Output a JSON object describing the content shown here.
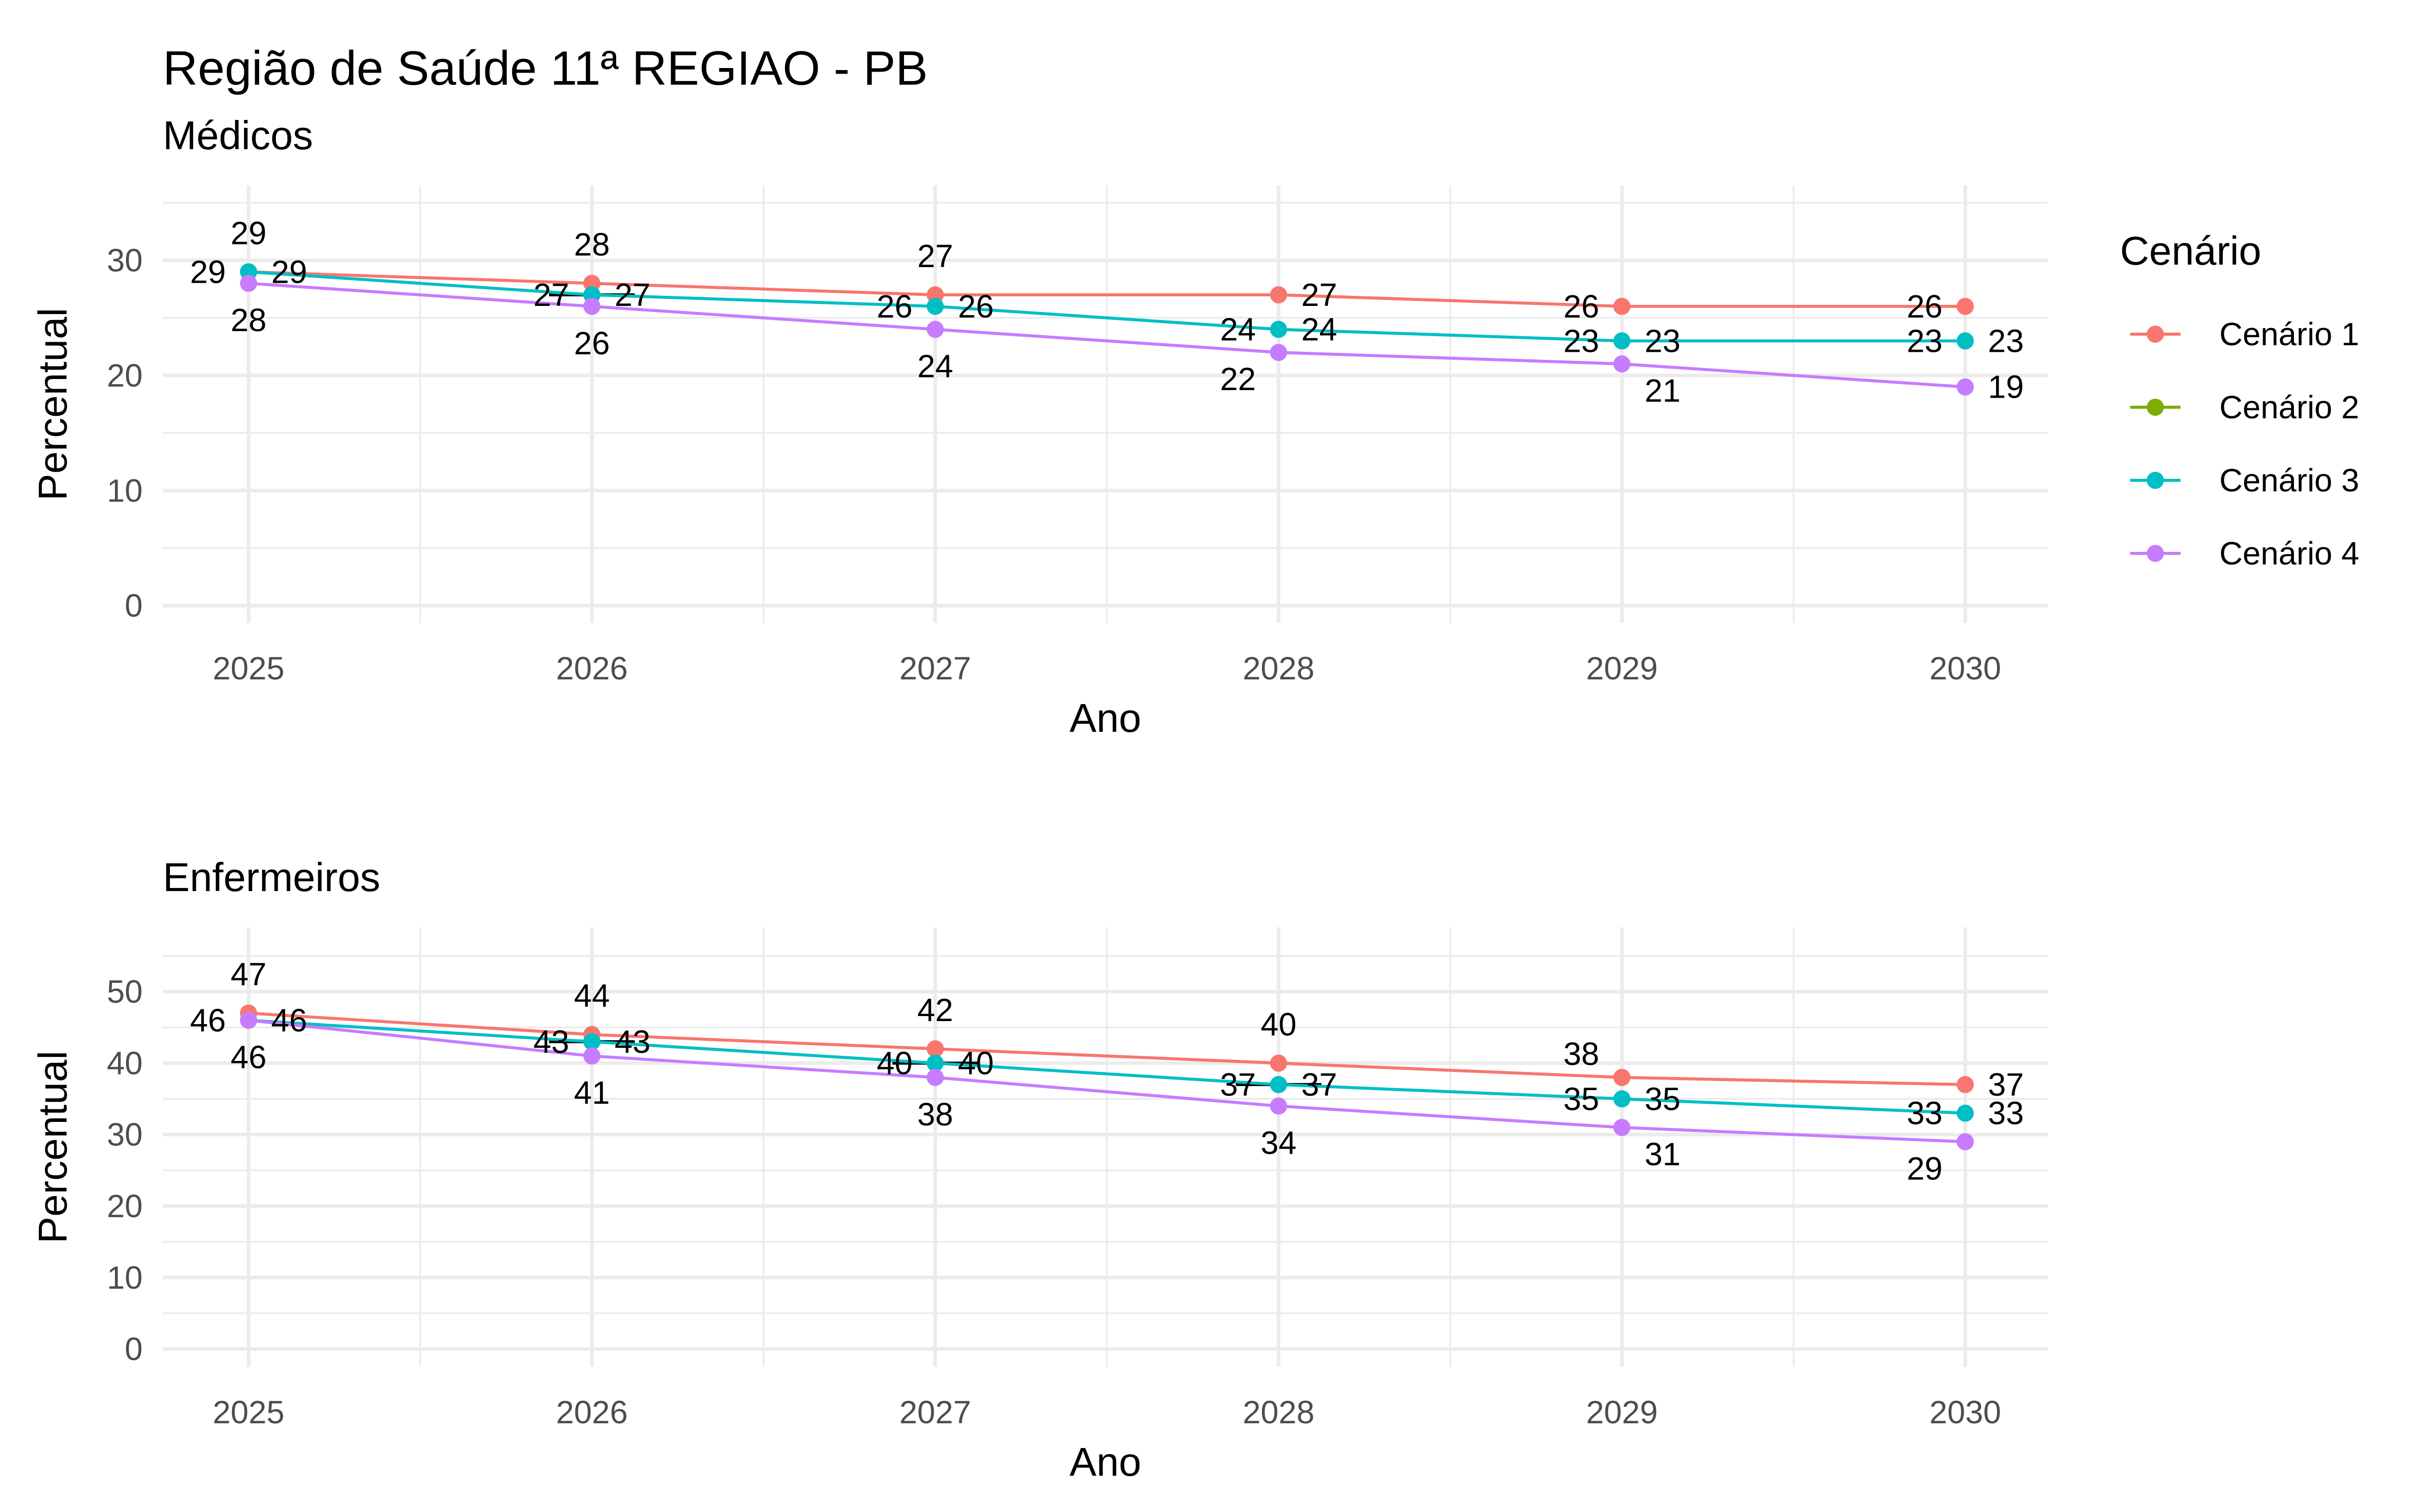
{
  "title": "Região de Saúde 11ª REGIAO - PB",
  "legend": {
    "title": "Cenário",
    "items": [
      {
        "label": "Cenário 1",
        "color": "#F8766D"
      },
      {
        "label": "Cenário 2",
        "color": "#7CAE00"
      },
      {
        "label": "Cenário 3",
        "color": "#00BFC4"
      },
      {
        "label": "Cenário 4",
        "color": "#C77CFF"
      }
    ]
  },
  "chart_data": [
    {
      "type": "line",
      "subtitle": "Médicos",
      "xlabel": "Ano",
      "ylabel": "Percentual",
      "x": [
        2025,
        2026,
        2027,
        2028,
        2029,
        2030
      ],
      "x_ticks": [
        "2025",
        "2026",
        "2027",
        "2028",
        "2029",
        "2030"
      ],
      "y_ticks": [
        "0",
        "10",
        "20",
        "30"
      ],
      "ylim": [
        -1.5,
        36.5
      ],
      "grid": true,
      "legend_position": "right",
      "series": [
        {
          "name": "Cenário 1",
          "color": "#F8766D",
          "values": [
            29,
            28,
            27,
            27,
            26,
            26
          ]
        },
        {
          "name": "Cenário 2",
          "color": "#7CAE00",
          "values": [
            29,
            27,
            26,
            24,
            23,
            23
          ]
        },
        {
          "name": "Cenário 3",
          "color": "#00BFC4",
          "values": [
            29,
            27,
            26,
            24,
            23,
            23
          ]
        },
        {
          "name": "Cenário 4",
          "color": "#C77CFF",
          "values": [
            28,
            26,
            24,
            22,
            21,
            19
          ]
        }
      ],
      "label_positions": {
        "Cenário 1": [
          "above",
          "above",
          "above",
          "right",
          "left",
          "left"
        ],
        "Cenário 2": [
          "left",
          "left",
          "left",
          "left",
          "left",
          "left"
        ],
        "Cenário 3": [
          "right",
          "right",
          "right",
          "right",
          "right",
          "right"
        ],
        "Cenário 4": [
          "below",
          "below",
          "below",
          "below-left",
          "below-right",
          "right"
        ]
      },
      "label_values": {
        "Cenário 1": [
          "29",
          "28",
          "27",
          "27",
          "26",
          "26"
        ],
        "Cenário 2": [
          "29",
          "27",
          "26",
          "24",
          "23",
          "23"
        ],
        "Cenário 3": [
          "29",
          "27",
          "26",
          "24",
          "23",
          "23"
        ],
        "Cenário 4": [
          "28",
          "26",
          "24",
          "22",
          "21",
          "19"
        ]
      },
      "error_bar_years": [
        2026
      ]
    },
    {
      "type": "line",
      "subtitle": "Enfermeiros",
      "xlabel": "Ano",
      "ylabel": "Percentual",
      "x": [
        2025,
        2026,
        2027,
        2028,
        2029,
        2030
      ],
      "x_ticks": [
        "2025",
        "2026",
        "2027",
        "2028",
        "2029",
        "2030"
      ],
      "y_ticks": [
        "0",
        "10",
        "20",
        "30",
        "40",
        "50"
      ],
      "ylim": [
        -2.5,
        59
      ],
      "grid": true,
      "legend_position": "right",
      "series": [
        {
          "name": "Cenário 1",
          "color": "#F8766D",
          "values": [
            47,
            44,
            42,
            40,
            38,
            37
          ]
        },
        {
          "name": "Cenário 2",
          "color": "#7CAE00",
          "values": [
            46,
            43,
            40,
            37,
            35,
            33
          ]
        },
        {
          "name": "Cenário 3",
          "color": "#00BFC4",
          "values": [
            46,
            43,
            40,
            37,
            35,
            33
          ]
        },
        {
          "name": "Cenário 4",
          "color": "#C77CFF",
          "values": [
            46,
            41,
            38,
            34,
            31,
            29
          ]
        }
      ],
      "label_positions": {
        "Cenário 1": [
          "above",
          "above",
          "above",
          "above",
          "above-left",
          "right"
        ],
        "Cenário 2": [
          "left",
          "left",
          "left",
          "left",
          "left",
          "left"
        ],
        "Cenário 3": [
          "right",
          "right",
          "right",
          "right",
          "right",
          "right"
        ],
        "Cenário 4": [
          "below",
          "below",
          "below",
          "below",
          "below-right",
          "below-left"
        ]
      },
      "label_values": {
        "Cenário 1": [
          "47",
          "44",
          "42",
          "40",
          "38",
          "37"
        ],
        "Cenário 2": [
          "46",
          "43",
          "40",
          "37",
          "35",
          "33"
        ],
        "Cenário 3": [
          "46",
          "43",
          "40",
          "37",
          "35",
          "33"
        ],
        "Cenário 4": [
          "46",
          "41",
          "38",
          "34",
          "31",
          "29"
        ]
      },
      "error_bar_years": [
        2026,
        2027,
        2028
      ]
    }
  ]
}
